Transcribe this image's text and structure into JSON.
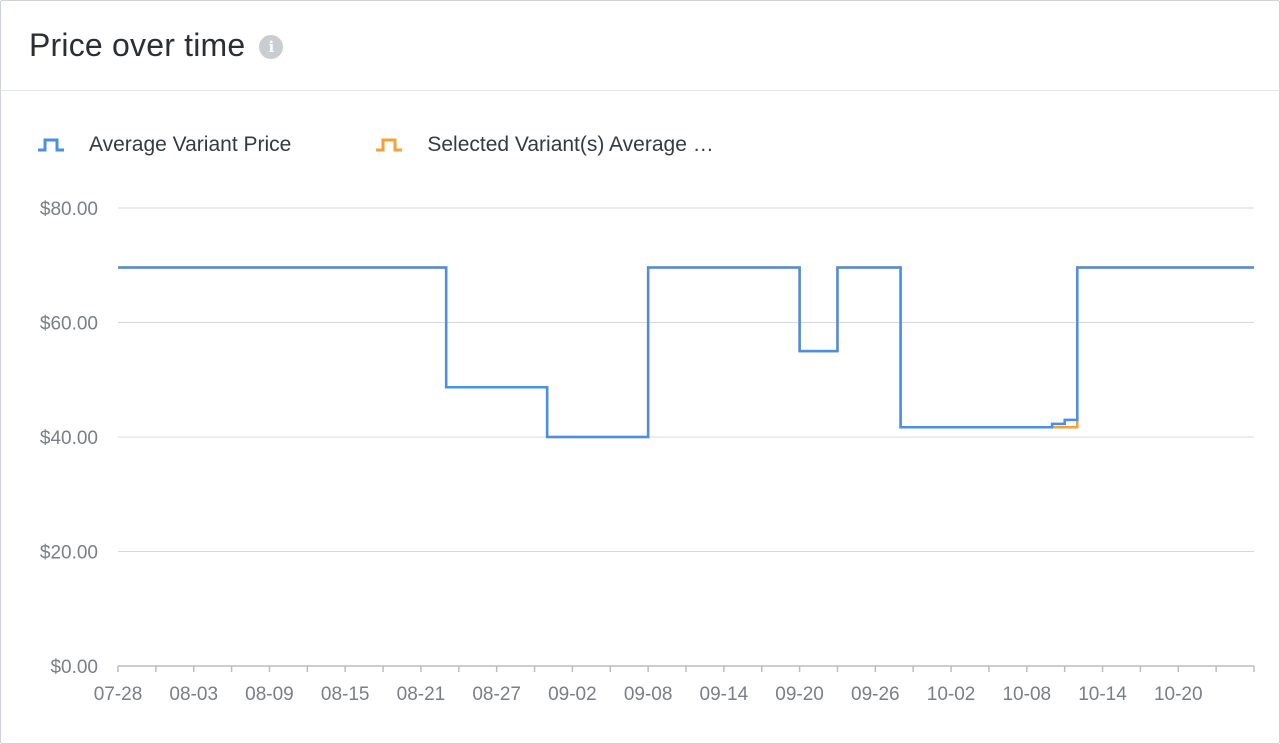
{
  "header": {
    "title": "Price over time",
    "info_icon": "info-icon"
  },
  "colors": {
    "series_avg": "#4a8fe7",
    "series_selected": "#f5a13b",
    "grid": "#d5d8dc",
    "axis_text": "#7a7f85"
  },
  "legend": {
    "items": [
      {
        "label": "Average Variant Price",
        "color": "#4a8fe7",
        "icon": "step-line-icon"
      },
      {
        "label": "Selected Variant(s) Average …",
        "color": "#f5a13b",
        "icon": "step-line-icon"
      }
    ]
  },
  "chart_data": {
    "type": "line",
    "step": true,
    "x_start": "07-28",
    "x_end": "10-26",
    "x_ticks": [
      "07-28",
      "08-03",
      "08-09",
      "08-15",
      "08-21",
      "08-27",
      "09-02",
      "09-08",
      "09-14",
      "09-20",
      "09-26",
      "10-02",
      "10-08",
      "10-14",
      "10-20"
    ],
    "y_ticks": [
      "$0.00",
      "$20.00",
      "$40.00",
      "$60.00",
      "$80.00"
    ],
    "ylim": [
      0,
      80
    ],
    "grid": true,
    "legend_position": "top-left",
    "series": [
      {
        "name": "Average Variant Price",
        "color": "#4a8fe7",
        "points": [
          [
            "07-28",
            69.6
          ],
          [
            "08-23",
            48.7
          ],
          [
            "08-31",
            40.0
          ],
          [
            "09-08",
            69.6
          ],
          [
            "09-20",
            55.0
          ],
          [
            "09-23",
            69.6
          ],
          [
            "09-28",
            41.7
          ],
          [
            "10-10",
            42.3
          ],
          [
            "10-11",
            43.0
          ],
          [
            "10-12",
            69.6
          ],
          [
            "10-26",
            69.6
          ]
        ]
      },
      {
        "name": "Selected Variant(s) Average …",
        "color": "#f5a13b",
        "points": [
          [
            "07-28",
            69.6
          ],
          [
            "08-23",
            48.7
          ],
          [
            "08-31",
            40.0
          ],
          [
            "09-08",
            69.6
          ],
          [
            "09-20",
            55.0
          ],
          [
            "09-23",
            69.6
          ],
          [
            "09-28",
            41.7
          ],
          [
            "10-10",
            41.7
          ],
          [
            "10-12",
            69.6
          ],
          [
            "10-26",
            69.6
          ]
        ]
      }
    ]
  }
}
